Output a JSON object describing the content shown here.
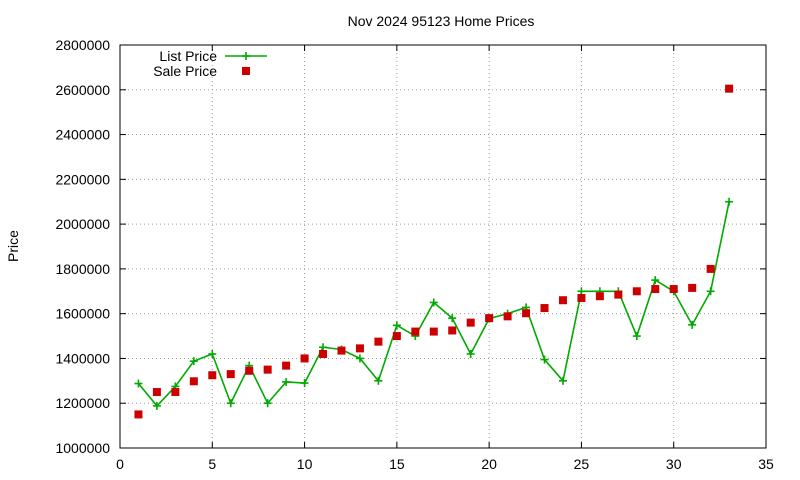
{
  "chart_data": {
    "type": "scatter",
    "title": "Nov 2024 95123 Home Prices",
    "xlabel": "",
    "ylabel": "Price",
    "xlim": [
      0,
      35
    ],
    "ylim": [
      1000000,
      2800000
    ],
    "x_ticks": [
      0,
      5,
      10,
      15,
      20,
      25,
      30,
      35
    ],
    "y_ticks": [
      1000000,
      1200000,
      1400000,
      1600000,
      1800000,
      2000000,
      2200000,
      2400000,
      2600000,
      2800000
    ],
    "grid": true,
    "legend_position": "top-left",
    "series": [
      {
        "name": "List Price",
        "style": "linespoints",
        "color": "#00aa00",
        "marker": "plus",
        "x": [
          1,
          2,
          3,
          4,
          5,
          6,
          7,
          8,
          9,
          10,
          11,
          12,
          13,
          14,
          15,
          16,
          17,
          18,
          19,
          20,
          21,
          22,
          23,
          24,
          25,
          26,
          27,
          28,
          29,
          30,
          31,
          32,
          33
        ],
        "y": [
          1288000,
          1188000,
          1275000,
          1388000,
          1420000,
          1200000,
          1368000,
          1200000,
          1295000,
          1290000,
          1450000,
          1440000,
          1400000,
          1300000,
          1548000,
          1500000,
          1650000,
          1580000,
          1420000,
          1578000,
          1600000,
          1628000,
          1395000,
          1300000,
          1700000,
          1700000,
          1700000,
          1500000,
          1750000,
          1700000,
          1550000,
          1700000,
          2100000
        ]
      },
      {
        "name": "Sale Price",
        "style": "points",
        "color": "#cc0000",
        "marker": "square",
        "x": [
          1,
          2,
          3,
          4,
          5,
          6,
          7,
          8,
          9,
          10,
          11,
          12,
          13,
          14,
          15,
          16,
          17,
          18,
          19,
          20,
          21,
          22,
          23,
          24,
          25,
          26,
          27,
          28,
          29,
          30,
          31,
          32,
          33
        ],
        "y": [
          1150000,
          1250000,
          1250000,
          1298000,
          1325000,
          1330000,
          1345000,
          1350000,
          1368000,
          1400000,
          1420000,
          1435000,
          1445000,
          1475000,
          1500000,
          1520000,
          1520000,
          1525000,
          1560000,
          1580000,
          1588000,
          1602000,
          1625000,
          1660000,
          1670000,
          1678000,
          1685000,
          1700000,
          1710000,
          1710000,
          1715000,
          1800000,
          2605000
        ]
      }
    ]
  }
}
